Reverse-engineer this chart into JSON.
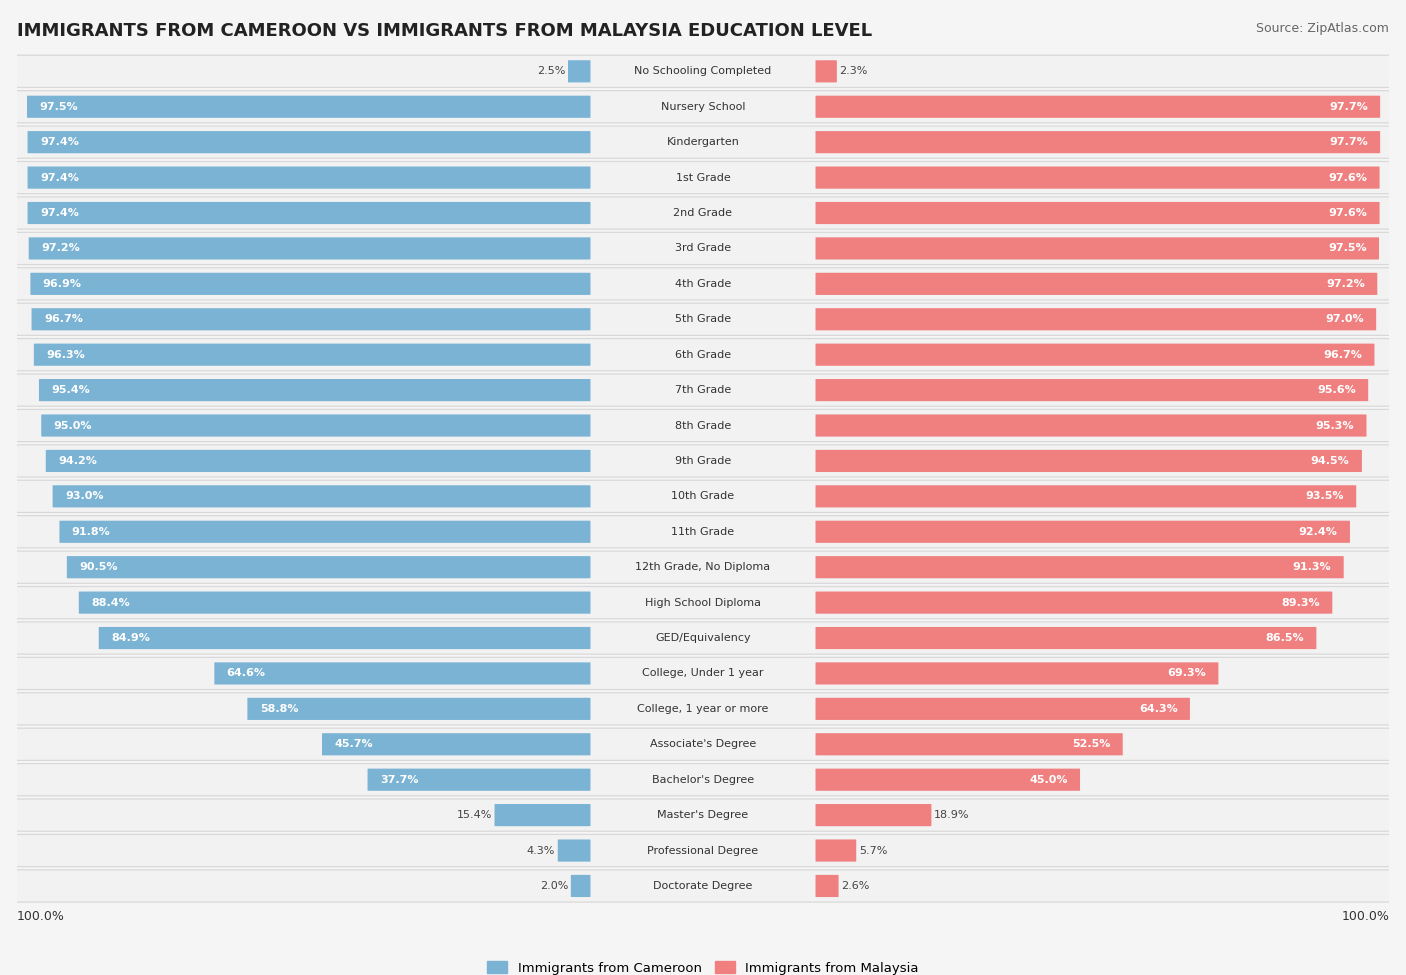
{
  "title": "IMMIGRANTS FROM CAMEROON VS IMMIGRANTS FROM MALAYSIA EDUCATION LEVEL",
  "source": "Source: ZipAtlas.com",
  "categories": [
    "No Schooling Completed",
    "Nursery School",
    "Kindergarten",
    "1st Grade",
    "2nd Grade",
    "3rd Grade",
    "4th Grade",
    "5th Grade",
    "6th Grade",
    "7th Grade",
    "8th Grade",
    "9th Grade",
    "10th Grade",
    "11th Grade",
    "12th Grade, No Diploma",
    "High School Diploma",
    "GED/Equivalency",
    "College, Under 1 year",
    "College, 1 year or more",
    "Associate's Degree",
    "Bachelor's Degree",
    "Master's Degree",
    "Professional Degree",
    "Doctorate Degree"
  ],
  "cameroon": [
    2.5,
    97.5,
    97.4,
    97.4,
    97.4,
    97.2,
    96.9,
    96.7,
    96.3,
    95.4,
    95.0,
    94.2,
    93.0,
    91.8,
    90.5,
    88.4,
    84.9,
    64.6,
    58.8,
    45.7,
    37.7,
    15.4,
    4.3,
    2.0
  ],
  "malaysia": [
    2.3,
    97.7,
    97.7,
    97.6,
    97.6,
    97.5,
    97.2,
    97.0,
    96.7,
    95.6,
    95.3,
    94.5,
    93.5,
    92.4,
    91.3,
    89.3,
    86.5,
    69.3,
    64.3,
    52.5,
    45.0,
    18.9,
    5.7,
    2.6
  ],
  "cameroon_color": "#7ab3d4",
  "malaysia_color": "#f08080",
  "bg_color": "#f5f5f5",
  "row_bg_outer": "#e0e0e0",
  "row_bg_inner": "#f0f0f0",
  "axis_label_left": "100.0%",
  "axis_label_right": "100.0%",
  "legend_cameroon": "Immigrants from Cameroon",
  "legend_malaysia": "Immigrants from Malaysia",
  "title_fontsize": 13,
  "source_fontsize": 9,
  "bar_label_fontsize": 8,
  "category_fontsize": 8
}
